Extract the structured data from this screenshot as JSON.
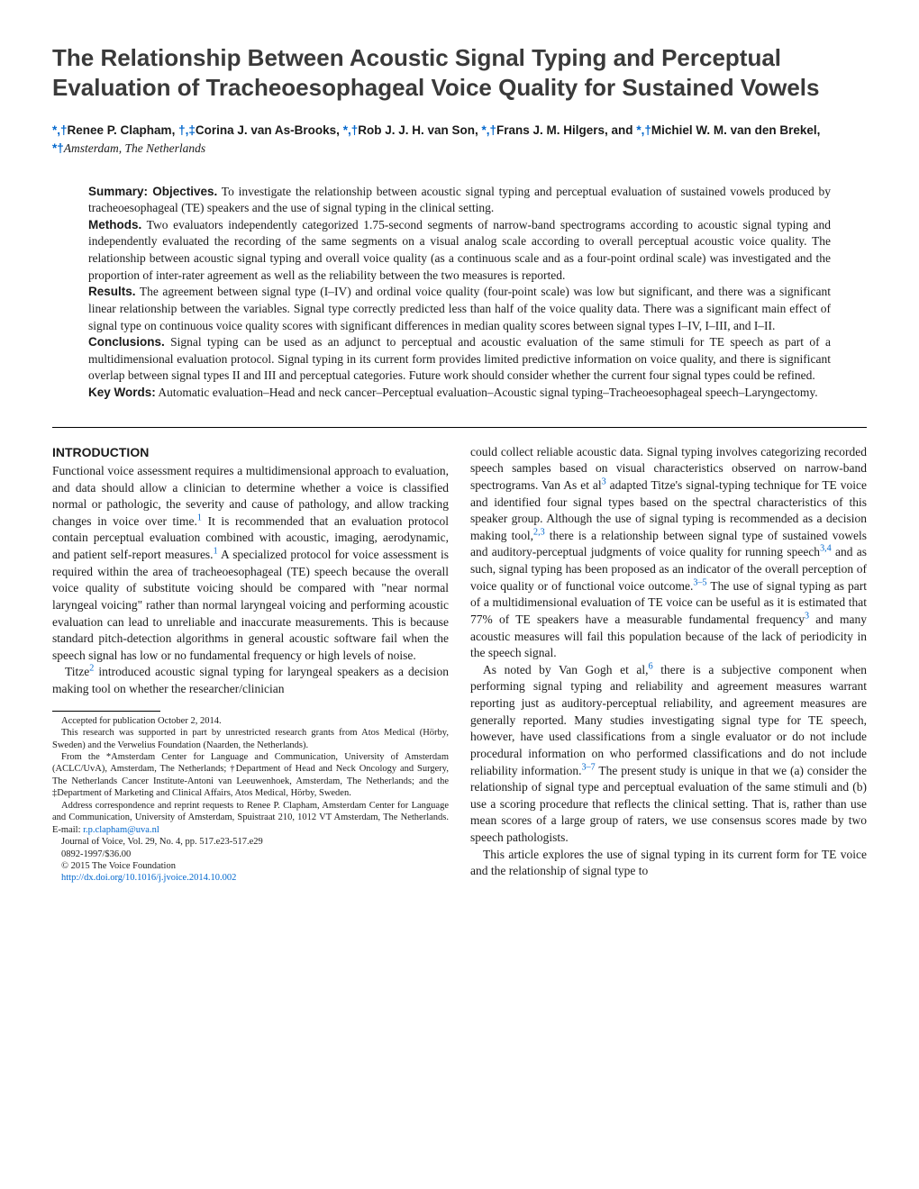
{
  "title": "The Relationship Between Acoustic Signal Typing and Perceptual Evaluation of Tracheoesophageal Voice Quality for Sustained Vowels",
  "authors_html": "<span class='affil'>*,†</span><span class='name'>Renee P. Clapham,</span> <span class='affil'>†,‡</span><span class='name'>Corina J. van As-Brooks,</span> <span class='affil'>*,†</span><span class='name'>Rob J. J. H. van Son,</span> <span class='affil'>*,†</span><span class='name'>Frans J. M. Hilgers, and </span><span class='affil'>*,†</span><span class='name'>Michiel W. M. van den Brekel,</span> <span class='affil'>*†</span><span class='loc'>Amsterdam, The Netherlands</span>",
  "abstract": {
    "summary_label": "Summary: Objectives.",
    "summary": " To investigate the relationship between acoustic signal typing and perceptual evaluation of sustained vowels produced by tracheoesophageal (TE) speakers and the use of signal typing in the clinical setting.",
    "methods_label": "Methods.",
    "methods": " Two evaluators independently categorized 1.75-second segments of narrow-band spectrograms according to acoustic signal typing and independently evaluated the recording of the same segments on a visual analog scale according to overall perceptual acoustic voice quality. The relationship between acoustic signal typing and overall voice quality (as a continuous scale and as a four-point ordinal scale) was investigated and the proportion of inter-rater agreement as well as the reliability between the two measures is reported.",
    "results_label": "Results.",
    "results": " The agreement between signal type (I–IV) and ordinal voice quality (four-point scale) was low but significant, and there was a significant linear relationship between the variables. Signal type correctly predicted less than half of the voice quality data. There was a significant main effect of signal type on continuous voice quality scores with significant differences in median quality scores between signal types I–IV, I–III, and I–II.",
    "conclusions_label": "Conclusions.",
    "conclusions": " Signal typing can be used as an adjunct to perceptual and acoustic evaluation of the same stimuli for TE speech as part of a multidimensional evaluation protocol. Signal typing in its current form provides limited predictive information on voice quality, and there is significant overlap between signal types II and III and perceptual categories. Future work should consider whether the current four signal types could be refined.",
    "keywords_label": "Key Words:",
    "keywords": " Automatic evaluation–Head and neck cancer–Perceptual evaluation–Acoustic signal typing–Tracheoesophageal speech–Laryngectomy."
  },
  "intro_heading": "INTRODUCTION",
  "col1": {
    "p1a": "Functional voice assessment requires a multidimensional approach to evaluation, and data should allow a clinician to determine whether a voice is classified normal or pathologic, the severity and cause of pathology, and allow tracking changes in voice over time.",
    "p1b": " It is recommended that an evaluation protocol contain perceptual evaluation combined with acoustic, imaging, aerodynamic, and patient self-report measures.",
    "p1c": " A specialized protocol for voice assessment is required within the area of tracheoesophageal (TE) speech because the overall voice quality of substitute voicing should be compared with \"near normal laryngeal voicing\" rather than normal laryngeal voicing and performing acoustic evaluation can lead to unreliable and inaccurate measurements. This is because standard pitch-detection algorithms in general acoustic software fail when the speech signal has low or no fundamental frequency or high levels of noise.",
    "p2a": "Titze",
    "p2b": " introduced acoustic signal typing for laryngeal speakers as a decision making tool on whether the researcher/clinician"
  },
  "col2": {
    "p1a": "could collect reliable acoustic data. Signal typing involves categorizing recorded speech samples based on visual characteristics observed on narrow-band spectrograms. Van As et al",
    "p1b": " adapted Titze's signal-typing technique for TE voice and identified four signal types based on the spectral characteristics of this speaker group. Although the use of signal typing is recommended as a decision making tool,",
    "p1c": " there is a relationship between signal type of sustained vowels and auditory-perceptual judgments of voice quality for running speech",
    "p1d": " and as such, signal typing has been proposed as an indicator of the overall perception of voice quality or of functional voice outcome.",
    "p1e": " The use of signal typing as part of a multidimensional evaluation of TE voice can be useful as it is estimated that 77% of TE speakers have a measurable fundamental frequency",
    "p1f": " and many acoustic measures will fail this population because of the lack of periodicity in the speech signal.",
    "p2a": "As noted by Van Gogh et al,",
    "p2b": " there is a subjective component when performing signal typing and reliability and agreement measures warrant reporting just as auditory-perceptual reliability, and agreement measures are generally reported. Many studies investigating signal type for TE speech, however, have used classifications from a single evaluator or do not include procedural information on who performed classifications and do not include reliability information.",
    "p2c": " The present study is unique in that we (a) consider the relationship of signal type and perceptual evaluation of the same stimuli and (b) use a scoring procedure that reflects the clinical setting. That is, rather than use mean scores of a large group of raters, we use consensus scores made by two speech pathologists.",
    "p3": "This article explores the use of signal typing in its current form for TE voice and the relationship of signal type to"
  },
  "refs": {
    "r1": "1",
    "r2": "2",
    "r3": "3",
    "r23": "2,3",
    "r34": "3,4",
    "r35": "3–5",
    "r6": "6",
    "r37": "3–7"
  },
  "footnotes": {
    "f1": "Accepted for publication October 2, 2014.",
    "f2": "This research was supported in part by unrestricted research grants from Atos Medical (Hörby, Sweden) and the Verwelius Foundation (Naarden, the Netherlands).",
    "f3": "From the *Amsterdam Center for Language and Communication, University of Amsterdam (ACLC/UvA), Amsterdam, The Netherlands; †Department of Head and Neck Oncology and Surgery, The Netherlands Cancer Institute-Antoni van Leeuwenhoek, Amsterdam, The Netherlands; and the ‡Department of Marketing and Clinical Affairs, Atos Medical, Hörby, Sweden.",
    "f4a": "Address correspondence and reprint requests to Renee P. Clapham, Amsterdam Center for Language and Communication, University of Amsterdam, Spuistraat 210, 1012 VT Amsterdam, The Netherlands. E-mail: ",
    "email": "r.p.clapham@uva.nl",
    "f5": "Journal of Voice, Vol. 29, No. 4, pp. 517.e23-517.e29",
    "f6": "0892-1997/$36.00",
    "f7": "© 2015 The Voice Foundation",
    "doi": "http://dx.doi.org/10.1016/j.jvoice.2014.10.002"
  },
  "colors": {
    "link": "#0066cc",
    "text": "#1a1a1a",
    "title": "#3a3a3a"
  }
}
